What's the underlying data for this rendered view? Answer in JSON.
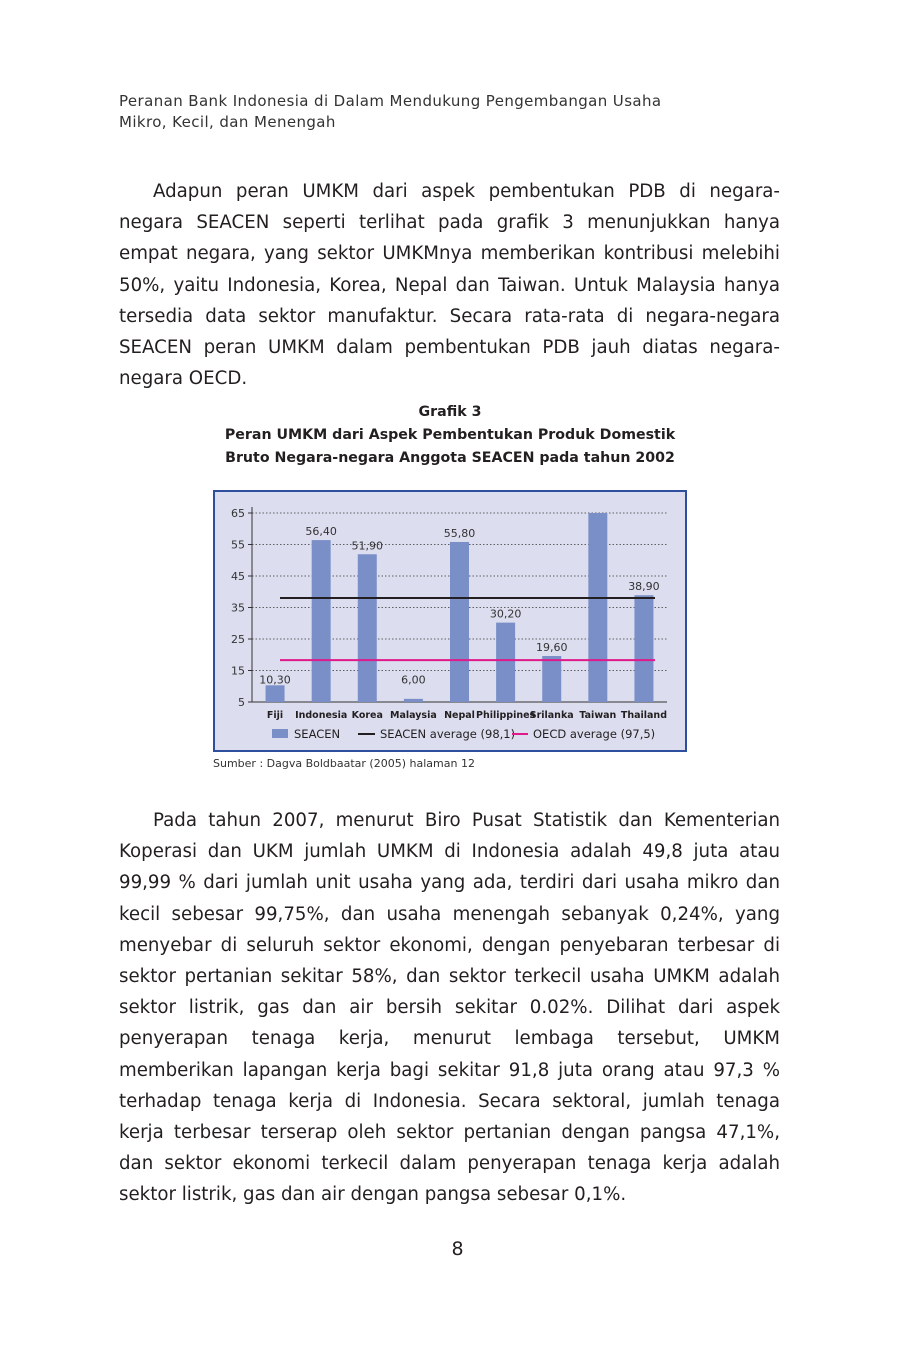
{
  "header": {
    "line1": "Peranan Bank Indonesia di Dalam Mendukung Pengembangan Usaha",
    "line2": "Mikro, Kecil, dan Menengah"
  },
  "paragraphs": {
    "p1": "Adapun peran UMKM dari aspek pembentukan PDB di negara-negara SEACEN seperti terlihat pada grafik 3 menunjukkan hanya empat negara, yang sektor UMKMnya memberikan kontribusi melebihi 50%, yaitu Indonesia, Korea, Nepal dan Taiwan. Untuk Malaysia hanya tersedia data sektor manufaktur. Secara rata-rata di negara-negara SEACEN peran UMKM dalam pembentukan PDB jauh diatas negara-negara OECD.",
    "p2": "Pada tahun 2007, menurut Biro Pusat Statistik dan Kementerian Koperasi dan UKM jumlah UMKM di Indonesia adalah 49,8 juta atau 99,99 % dari jumlah unit usaha yang ada, terdiri dari usaha mikro dan kecil sebesar 99,75%, dan usaha menengah sebanyak 0,24%, yang menyebar di seluruh sektor ekonomi, dengan penyebaran terbesar di sektor pertanian sekitar 58%, dan sektor terkecil usaha UMKM adalah sektor listrik, gas dan air bersih sekitar 0.02%. Dilihat dari aspek penyerapan tenaga kerja, menurut lembaga tersebut, UMKM memberikan lapangan kerja bagi sekitar 91,8 juta orang atau 97,3 % terhadap tenaga kerja di Indonesia. Secara sektoral, jumlah tenaga kerja terbesar terserap oleh sektor pertanian dengan pangsa 47,1%, dan sektor ekonomi terkecil dalam penyerapan tenaga kerja adalah sektor listrik, gas dan air dengan pangsa sebesar 0,1%."
  },
  "caption": {
    "label": "Grafik 3",
    "line1": "Peran UMKM dari Aspek Pembentukan Produk Domestik",
    "line2": "Bruto Negara-negara Anggota SEACEN pada tahun 2002"
  },
  "source": "Sumber : Dagva Boldbaatar (2005) halaman 12",
  "page_number": "8",
  "chart_data": {
    "type": "bar",
    "categories": [
      "Fiji",
      "Indonesia",
      "Korea",
      "Malaysia",
      "Nepal",
      "Philippines",
      "Srilanka",
      "Taiwan",
      "Thailand"
    ],
    "series": [
      {
        "name": "SEACEN",
        "values": [
          10.3,
          56.4,
          51.9,
          6.0,
          55.8,
          30.2,
          19.6,
          65,
          38.9
        ],
        "labels": [
          "10,30",
          "56,40",
          "51,90",
          "6,00",
          "55,80",
          "30,20",
          "19,60",
          "",
          "38,90"
        ]
      }
    ],
    "reference_lines": [
      {
        "name": "SEACEN average (98,1)",
        "value": 38,
        "color": "#231f20"
      },
      {
        "name": "OECD average (97,5)",
        "value": 18.3,
        "color": "#e0198a"
      }
    ],
    "yticks": [
      5,
      15,
      25,
      35,
      45,
      55,
      65
    ],
    "ylim": [
      5,
      65
    ],
    "grid": "horizontal dotted",
    "legend_position": "bottom",
    "bar_color": "#7a8fc7"
  }
}
